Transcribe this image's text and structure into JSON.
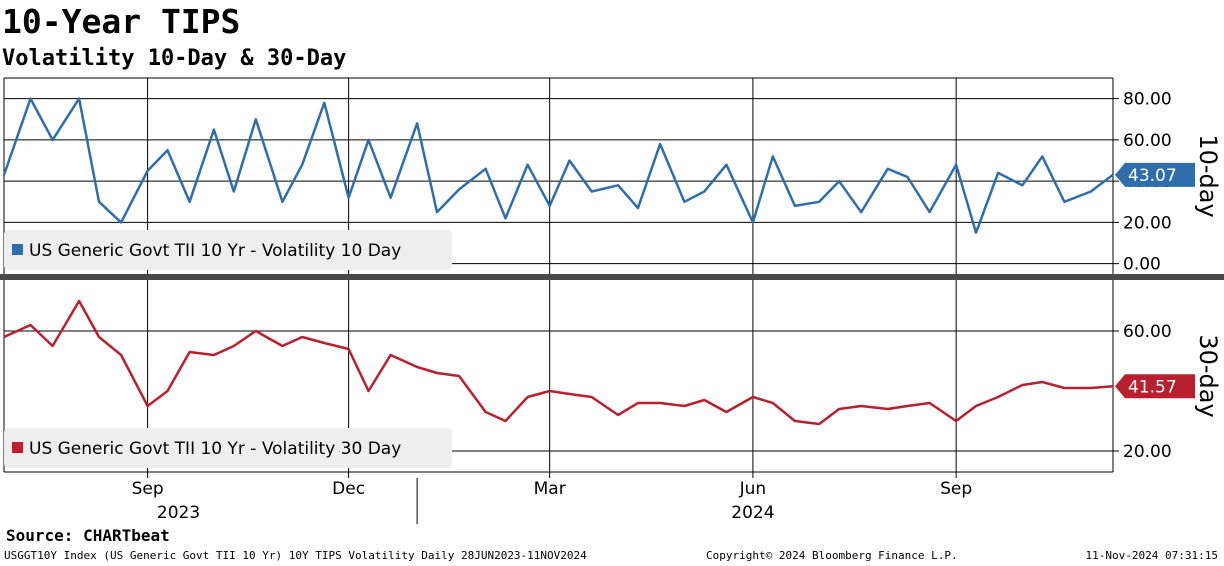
{
  "header": {
    "title": "10-Year TIPS",
    "subtitle": "Volatility 10-Day & 30-Day"
  },
  "footer": {
    "source": "Source: CHARTbeat",
    "description": "USGGT10Y Index (US Generic Govt TII 10 Yr) 10Y TIPS Volatility  Daily 28JUN2023-11NOV2024",
    "copyright": "Copyright© 2024 Bloomberg Finance L.P.",
    "timestamp": "11-Nov-2024 07:31:15"
  },
  "colors": {
    "series_10d": "#2f6eaa",
    "series_30d": "#b8202f",
    "grid": "#000000",
    "divider": "#4a4a4a",
    "legend_bg": "#eeeeee"
  },
  "chart_data": [
    {
      "type": "line",
      "panel": "top",
      "y_axis_label": "10-day",
      "ylim": [
        -5,
        90
      ],
      "y_ticks": [
        "80.00",
        "60.00",
        "40.00",
        "20.00",
        "0.00"
      ],
      "y_tick_values": [
        80,
        60,
        40,
        20,
        0
      ],
      "last_value_label": "43.07",
      "series": [
        {
          "name": "US Generic Govt TII 10 Yr - Volatility 10 Day",
          "x": [
            "2023-06-28",
            "2023-07-10",
            "2023-07-20",
            "2023-08-01",
            "2023-08-10",
            "2023-08-20",
            "2023-09-01",
            "2023-09-10",
            "2023-09-20",
            "2023-10-01",
            "2023-10-10",
            "2023-10-20",
            "2023-11-01",
            "2023-11-10",
            "2023-11-20",
            "2023-12-01",
            "2023-12-10",
            "2023-12-20",
            "2024-01-01",
            "2024-01-10",
            "2024-01-20",
            "2024-02-01",
            "2024-02-10",
            "2024-02-20",
            "2024-03-01",
            "2024-03-10",
            "2024-03-20",
            "2024-04-01",
            "2024-04-10",
            "2024-04-20",
            "2024-05-01",
            "2024-05-10",
            "2024-05-20",
            "2024-06-01",
            "2024-06-10",
            "2024-06-20",
            "2024-07-01",
            "2024-07-10",
            "2024-07-20",
            "2024-08-01",
            "2024-08-10",
            "2024-08-20",
            "2024-09-01",
            "2024-09-10",
            "2024-09-20",
            "2024-10-01",
            "2024-10-10",
            "2024-10-20",
            "2024-11-01",
            "2024-11-11"
          ],
          "values": [
            43,
            80,
            60,
            80,
            30,
            20,
            45,
            55,
            30,
            65,
            35,
            70,
            30,
            48,
            78,
            32,
            60,
            32,
            68,
            25,
            36,
            46,
            22,
            48,
            28,
            50,
            35,
            38,
            27,
            58,
            30,
            35,
            48,
            20,
            52,
            28,
            30,
            40,
            25,
            46,
            42,
            25,
            48,
            15,
            44,
            38,
            52,
            30,
            35,
            43.07
          ]
        }
      ],
      "legend": "bottom-left"
    },
    {
      "type": "line",
      "panel": "bottom",
      "y_axis_label": "30-day",
      "ylim": [
        13,
        77
      ],
      "y_ticks": [
        "60.00",
        "20.00"
      ],
      "y_tick_values": [
        60,
        20
      ],
      "last_value_label": "41.57",
      "series": [
        {
          "name": "US Generic Govt TII 10 Yr - Volatility 30 Day",
          "x": [
            "2023-06-28",
            "2023-07-10",
            "2023-07-20",
            "2023-08-01",
            "2023-08-10",
            "2023-08-20",
            "2023-09-01",
            "2023-09-10",
            "2023-09-20",
            "2023-10-01",
            "2023-10-10",
            "2023-10-20",
            "2023-11-01",
            "2023-11-10",
            "2023-11-20",
            "2023-12-01",
            "2023-12-10",
            "2023-12-20",
            "2024-01-01",
            "2024-01-10",
            "2024-01-20",
            "2024-02-01",
            "2024-02-10",
            "2024-02-20",
            "2024-03-01",
            "2024-03-10",
            "2024-03-20",
            "2024-04-01",
            "2024-04-10",
            "2024-04-20",
            "2024-05-01",
            "2024-05-10",
            "2024-05-20",
            "2024-06-01",
            "2024-06-10",
            "2024-06-20",
            "2024-07-01",
            "2024-07-10",
            "2024-07-20",
            "2024-08-01",
            "2024-08-10",
            "2024-08-20",
            "2024-09-01",
            "2024-09-10",
            "2024-09-20",
            "2024-10-01",
            "2024-10-10",
            "2024-10-20",
            "2024-11-01",
            "2024-11-11"
          ],
          "values": [
            58,
            62,
            55,
            70,
            58,
            52,
            35,
            40,
            53,
            52,
            55,
            60,
            55,
            58,
            56,
            54,
            40,
            52,
            48,
            46,
            45,
            33,
            30,
            38,
            40,
            39,
            38,
            32,
            36,
            36,
            35,
            37,
            33,
            38,
            36,
            30,
            29,
            34,
            35,
            34,
            35,
            36,
            30,
            35,
            38,
            42,
            43,
            41,
            41,
            41.57
          ]
        }
      ],
      "legend": "bottom-left"
    }
  ],
  "x_axis": {
    "ticks": [
      "Sep",
      "Dec",
      "Mar",
      "Jun",
      "Sep"
    ],
    "tick_dates": [
      "2023-09-01",
      "2023-12-01",
      "2024-03-01",
      "2024-06-01",
      "2024-09-01"
    ],
    "years": [
      "2023",
      "2024"
    ],
    "year_dates": [
      "2023-09-15",
      "2024-06-01"
    ],
    "year_divider_date": "2024-01-01",
    "range": [
      "2023-06-28",
      "2024-11-11"
    ]
  }
}
